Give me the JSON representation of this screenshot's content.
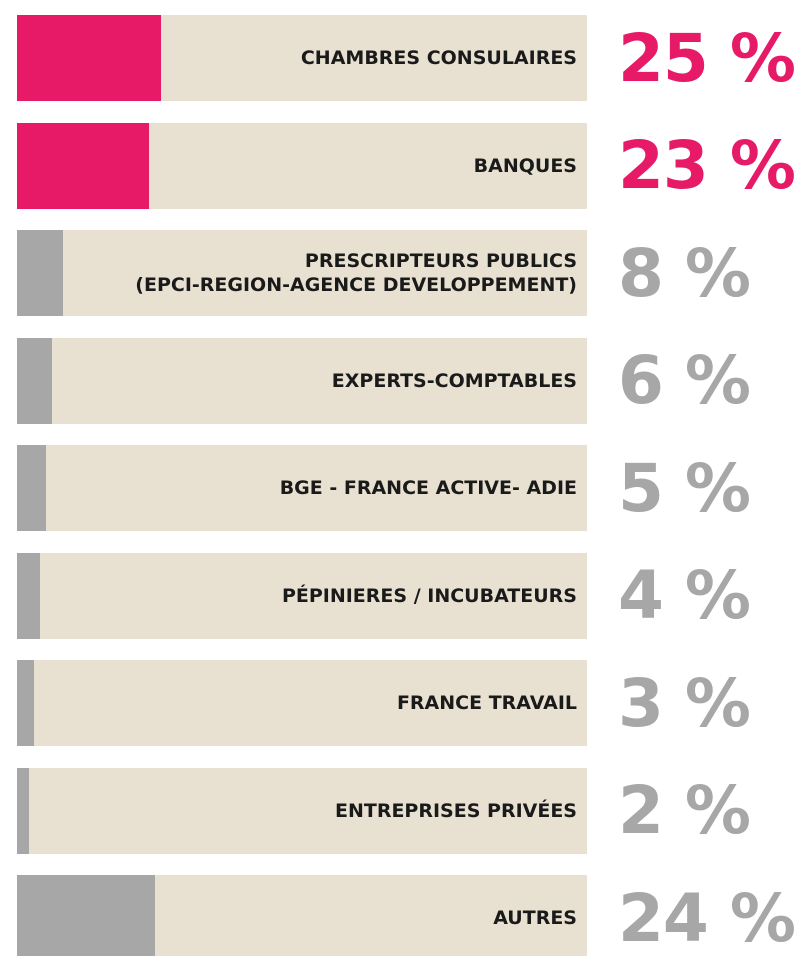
{
  "chart_data": {
    "type": "bar",
    "orientation": "horizontal",
    "categories": [
      "CHAMBRES CONSULAIRES",
      "BANQUES",
      "PRESCRIPTEURS PUBLICS\n(EPCI-REGION-AGENCE DEVELOPPEMENT)",
      "EXPERTS-COMPTABLES",
      "BGE - FRANCE ACTIVE- ADIE",
      "PÉPINIERES / INCUBATEURS",
      "FRANCE TRAVAIL",
      "ENTREPRISES PRIVÉES",
      "AUTRES"
    ],
    "values": [
      25,
      23,
      8,
      6,
      5,
      4,
      3,
      2,
      24
    ],
    "value_labels": [
      "25 %",
      "23 %",
      "8 %",
      "6 %",
      "5 %",
      "4 %",
      "3 %",
      "2 %",
      "24 %"
    ],
    "colors": [
      "#e61a67",
      "#e61a67",
      "#a7a7a7",
      "#a7a7a7",
      "#a7a7a7",
      "#a7a7a7",
      "#a7a7a7",
      "#a7a7a7",
      "#a7a7a7"
    ],
    "track_color": "#e8e1d1"
  }
}
